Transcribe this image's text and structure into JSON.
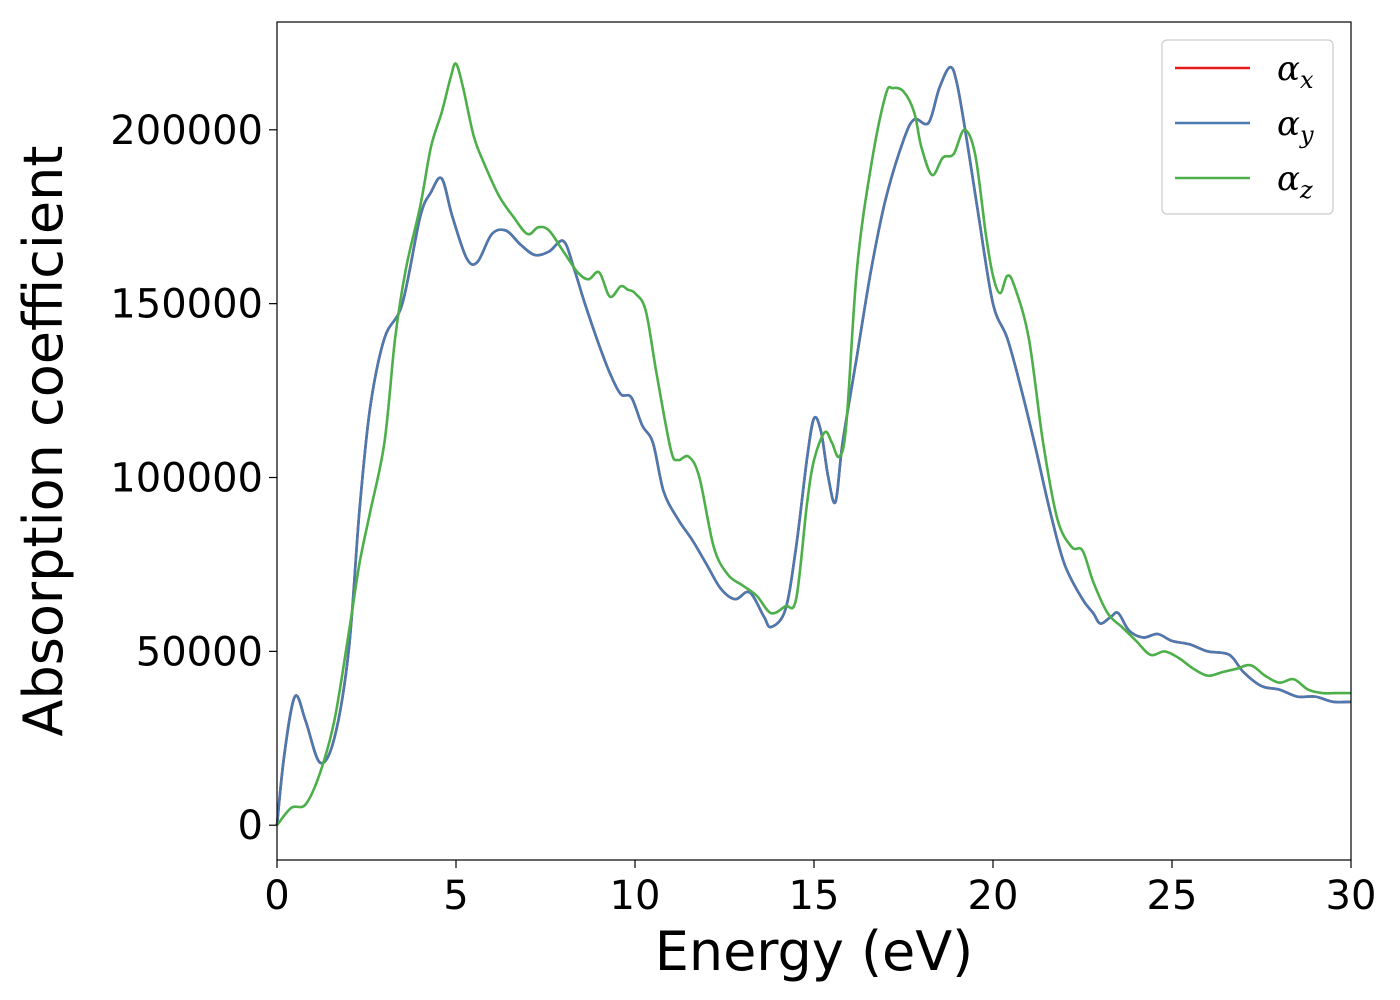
{
  "chart_data": {
    "type": "line",
    "xlabel": "Energy (eV)",
    "ylabel": "Absorption coefficient",
    "xlim": [
      0,
      30
    ],
    "ylim": [
      -10000,
      231000
    ],
    "xticks": [
      0,
      5,
      10,
      15,
      20,
      25,
      30
    ],
    "yticks": [
      0,
      50000,
      100000,
      150000,
      200000
    ],
    "grid": false,
    "legend_position": "top-right",
    "series": [
      {
        "name": "α_x",
        "legend_symbol": "α",
        "legend_sub": "x",
        "color": "#e41a1c",
        "x": [
          0,
          0.2,
          0.5,
          0.8,
          1.2,
          1.6,
          2.0,
          2.3,
          2.6,
          3.0,
          3.5,
          4.0,
          4.3,
          4.6,
          4.9,
          5.3,
          5.6,
          6.0,
          6.4,
          6.8,
          7.2,
          7.6,
          8.0,
          8.3,
          8.6,
          9.0,
          9.3,
          9.6,
          9.9,
          10.2,
          10.5,
          10.8,
          11.2,
          11.6,
          12.0,
          12.4,
          12.8,
          13.2,
          13.6,
          13.8,
          14.2,
          14.5,
          14.8,
          15.0,
          15.2,
          15.4,
          15.6,
          15.8,
          16.2,
          16.6,
          17.0,
          17.5,
          17.8,
          18.2,
          18.5,
          18.8,
          19.0,
          19.3,
          19.6,
          20.0,
          20.4,
          20.8,
          21.2,
          21.6,
          22.0,
          22.5,
          22.8,
          23.0,
          23.3,
          23.5,
          23.8,
          24.2,
          24.6,
          25.0,
          25.5,
          26.0,
          26.6,
          27.0,
          27.5,
          28.0,
          28.5,
          29.0,
          29.5,
          30.0
        ],
        "y": [
          0,
          20000,
          37000,
          30000,
          18000,
          25000,
          50000,
          90000,
          120000,
          140000,
          150000,
          175000,
          182000,
          186000,
          175000,
          163000,
          162000,
          170000,
          171000,
          167000,
          164000,
          165000,
          168000,
          160000,
          150000,
          138000,
          130000,
          124000,
          123000,
          115000,
          110000,
          96000,
          88000,
          82000,
          75000,
          68000,
          65000,
          67000,
          60000,
          57000,
          62000,
          80000,
          105000,
          117000,
          113000,
          100000,
          93000,
          110000,
          135000,
          160000,
          180000,
          197000,
          203000,
          202000,
          212000,
          218000,
          213000,
          195000,
          175000,
          150000,
          140000,
          125000,
          108000,
          90000,
          75000,
          65000,
          61000,
          58000,
          60000,
          61000,
          56000,
          54000,
          55000,
          53000,
          52000,
          50000,
          49000,
          44000,
          40000,
          39000,
          37000,
          37000,
          35500,
          35500
        ]
      },
      {
        "name": "α_y",
        "legend_symbol": "α",
        "legend_sub": "y",
        "color": "#4a7ab0",
        "x": [
          0,
          0.2,
          0.5,
          0.8,
          1.2,
          1.6,
          2.0,
          2.3,
          2.6,
          3.0,
          3.5,
          4.0,
          4.3,
          4.6,
          4.9,
          5.3,
          5.6,
          6.0,
          6.4,
          6.8,
          7.2,
          7.6,
          8.0,
          8.3,
          8.6,
          9.0,
          9.3,
          9.6,
          9.9,
          10.2,
          10.5,
          10.8,
          11.2,
          11.6,
          12.0,
          12.4,
          12.8,
          13.2,
          13.6,
          13.8,
          14.2,
          14.5,
          14.8,
          15.0,
          15.2,
          15.4,
          15.6,
          15.8,
          16.2,
          16.6,
          17.0,
          17.5,
          17.8,
          18.2,
          18.5,
          18.8,
          19.0,
          19.3,
          19.6,
          20.0,
          20.4,
          20.8,
          21.2,
          21.6,
          22.0,
          22.5,
          22.8,
          23.0,
          23.3,
          23.5,
          23.8,
          24.2,
          24.6,
          25.0,
          25.5,
          26.0,
          26.6,
          27.0,
          27.5,
          28.0,
          28.5,
          29.0,
          29.5,
          30.0
        ],
        "y": [
          0,
          20000,
          37000,
          30000,
          18000,
          25000,
          50000,
          90000,
          120000,
          140000,
          150000,
          175000,
          182000,
          186000,
          175000,
          163000,
          162000,
          170000,
          171000,
          167000,
          164000,
          165000,
          168000,
          160000,
          150000,
          138000,
          130000,
          124000,
          123000,
          115000,
          110000,
          96000,
          88000,
          82000,
          75000,
          68000,
          65000,
          67000,
          60000,
          57000,
          62000,
          80000,
          105000,
          117000,
          113000,
          100000,
          93000,
          110000,
          135000,
          160000,
          180000,
          197000,
          203000,
          202000,
          212000,
          218000,
          213000,
          195000,
          175000,
          150000,
          140000,
          125000,
          108000,
          90000,
          75000,
          65000,
          61000,
          58000,
          60000,
          61000,
          56000,
          54000,
          55000,
          53000,
          52000,
          50000,
          49000,
          44000,
          40000,
          39000,
          37000,
          37000,
          35500,
          35500
        ]
      },
      {
        "name": "α_z",
        "legend_symbol": "α",
        "legend_sub": "z",
        "color": "#4daf4a",
        "x": [
          0,
          0.4,
          0.8,
          1.2,
          1.6,
          2.0,
          2.3,
          2.6,
          3.0,
          3.3,
          3.6,
          4.0,
          4.3,
          4.6,
          4.85,
          5.0,
          5.2,
          5.5,
          5.8,
          6.2,
          6.6,
          7.0,
          7.3,
          7.6,
          8.0,
          8.4,
          8.7,
          9.0,
          9.3,
          9.6,
          9.8,
          10.0,
          10.3,
          10.6,
          11.0,
          11.2,
          11.5,
          11.8,
          12.2,
          12.6,
          13.0,
          13.4,
          13.8,
          14.2,
          14.5,
          14.8,
          15.0,
          15.3,
          15.5,
          15.7,
          15.9,
          16.2,
          16.6,
          17.0,
          17.2,
          17.5,
          17.8,
          18.0,
          18.3,
          18.6,
          18.9,
          19.2,
          19.5,
          19.8,
          20.0,
          20.2,
          20.4,
          20.6,
          21.0,
          21.4,
          21.8,
          22.2,
          22.5,
          22.8,
          23.2,
          23.6,
          24.0,
          24.4,
          24.8,
          25.2,
          25.6,
          26.0,
          26.4,
          26.8,
          27.2,
          27.6,
          28.0,
          28.4,
          28.8,
          29.2,
          29.6,
          30.0
        ],
        "y": [
          0,
          5000,
          6000,
          15000,
          30000,
          55000,
          75000,
          90000,
          110000,
          140000,
          160000,
          178000,
          195000,
          205000,
          215000,
          219000,
          212000,
          198000,
          190000,
          181000,
          175000,
          170000,
          172000,
          171000,
          165000,
          159000,
          157000,
          159000,
          152000,
          155000,
          154000,
          153000,
          148000,
          130000,
          108000,
          105000,
          106000,
          100000,
          80000,
          72000,
          69000,
          66000,
          61000,
          63000,
          65000,
          92000,
          105000,
          113000,
          110000,
          106000,
          115000,
          160000,
          190000,
          210000,
          212000,
          211000,
          205000,
          195000,
          187000,
          192000,
          193000,
          200000,
          193000,
          170000,
          158000,
          153000,
          158000,
          155000,
          140000,
          110000,
          88000,
          80000,
          79000,
          70000,
          61000,
          57000,
          53000,
          49000,
          50000,
          48000,
          45000,
          43000,
          44000,
          45000,
          46000,
          43000,
          41000,
          42000,
          39000,
          38000,
          38000,
          38000
        ]
      }
    ]
  }
}
